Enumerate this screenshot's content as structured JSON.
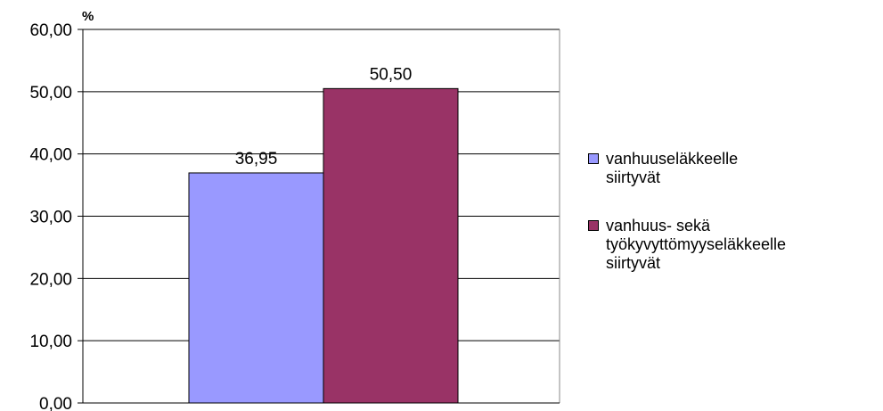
{
  "chart_data": {
    "type": "bar",
    "unit_label": "%",
    "ylim": [
      0,
      60
    ],
    "yticks": [
      "0,00",
      "10,00",
      "20,00",
      "30,00",
      "40,00",
      "50,00",
      "60,00"
    ],
    "grid": true,
    "legend_placement": "right",
    "series": [
      {
        "name": "vanhuuseläkkeelle\nsiirtyvät",
        "value": 36.95,
        "label": "36,95",
        "color": "#9999ff"
      },
      {
        "name": "vanhuus- sekä\ntyökyvyttömyyseläkkeelle\nsiirtyvät",
        "value": 50.5,
        "label": "50,50",
        "color": "#993366"
      }
    ]
  }
}
